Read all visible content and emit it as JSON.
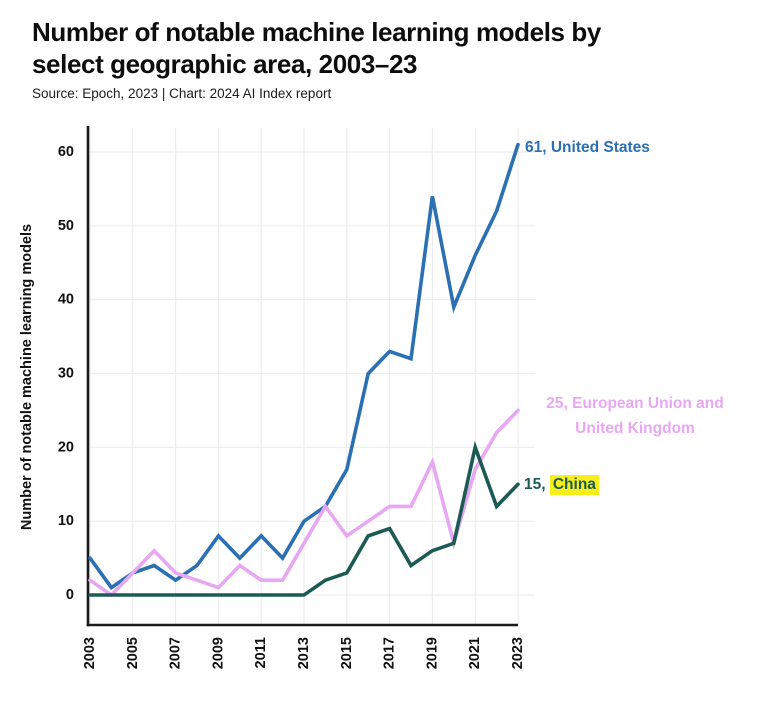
{
  "header": {
    "title_line1": "Number of notable machine learning models by",
    "title_line2": "select geographic area, 2003–23",
    "source": "Source: Epoch, 2023 | Chart: 2024 AI Index report"
  },
  "chart_data": {
    "type": "line",
    "title": "Number of notable machine learning models by select geographic area, 2003–23",
    "xlabel": "",
    "ylabel": "Number of notable machine learning models",
    "ylim": [
      0,
      60
    ],
    "y_ticks": [
      0,
      10,
      20,
      30,
      40,
      50,
      60
    ],
    "x": [
      2003,
      2004,
      2005,
      2006,
      2007,
      2008,
      2009,
      2010,
      2011,
      2012,
      2013,
      2014,
      2015,
      2016,
      2017,
      2018,
      2019,
      2020,
      2021,
      2022,
      2023
    ],
    "x_tick_labels": [
      "2003",
      "2005",
      "2007",
      "2009",
      "2011",
      "2013",
      "2015",
      "2017",
      "2019",
      "2021",
      "2023"
    ],
    "grid": true,
    "legend_position": "direct line-end labels, right side",
    "colors": {
      "axis": "#1a1a1a",
      "gridline": "#ededed",
      "highlight_yellow": "#f8ee1b"
    },
    "series": [
      {
        "name": "United States",
        "color": "#2b70b3",
        "end_label": "61, United States",
        "values": [
          5,
          1,
          3,
          4,
          2,
          4,
          8,
          5,
          8,
          5,
          10,
          12,
          17,
          30,
          33,
          32,
          54,
          39,
          46,
          52,
          61
        ]
      },
      {
        "name": "European Union and United Kingdom",
        "color": "#e8a7f3",
        "end_label_line1": "25, European Union and",
        "end_label_line2": "United Kingdom",
        "values": [
          2,
          0,
          3,
          6,
          3,
          2,
          1,
          4,
          2,
          2,
          7,
          12,
          8,
          10,
          12,
          12,
          18,
          7,
          17,
          22,
          25
        ]
      },
      {
        "name": "China",
        "color": "#1c5a54",
        "end_label_prefix": "15, ",
        "end_label_highlight": "China",
        "values": [
          0,
          0,
          0,
          0,
          0,
          0,
          0,
          0,
          0,
          0,
          0,
          2,
          3,
          8,
          9,
          4,
          6,
          7,
          20,
          12,
          15
        ]
      }
    ]
  }
}
